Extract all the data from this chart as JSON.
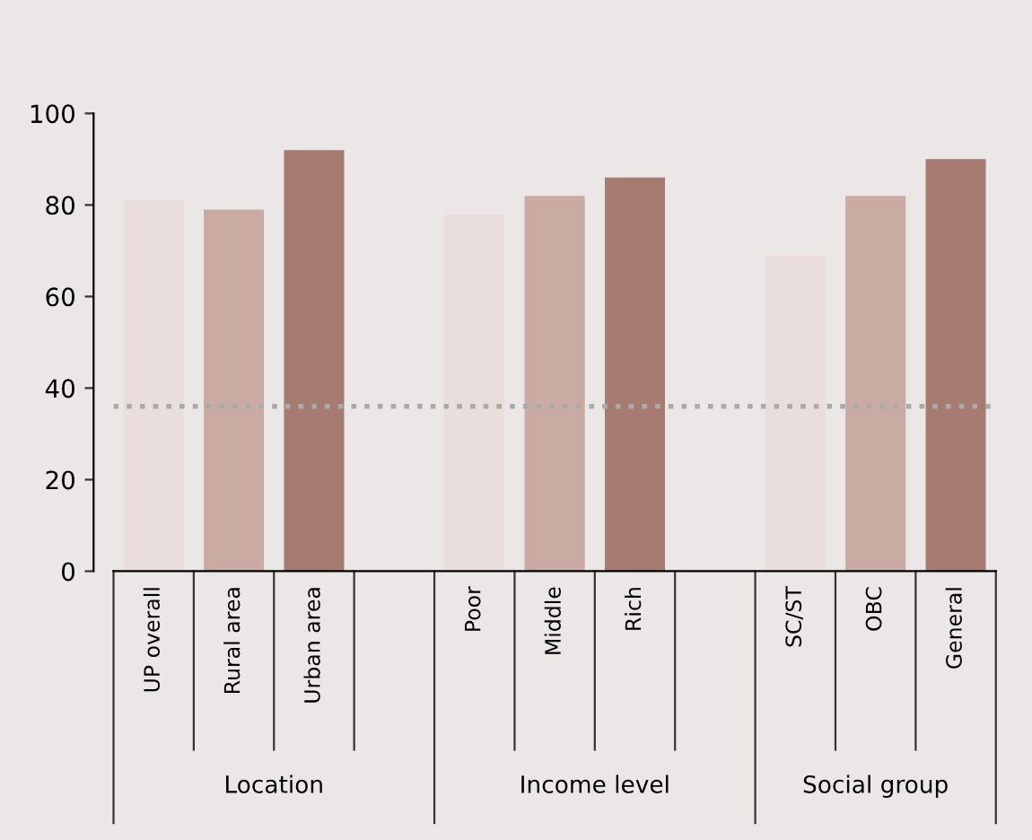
{
  "chart_data": {
    "type": "bar",
    "categories": [
      "UP overall",
      "Rural area",
      "Urban area",
      null,
      "Poor",
      "Middle",
      "Rich",
      null,
      "SC/ST",
      "OBC",
      "General"
    ],
    "values": [
      81,
      79,
      92,
      null,
      78,
      82,
      86,
      null,
      69,
      82,
      90
    ],
    "colors": [
      "#e9dedb",
      "#c9aba3",
      "#a67c72",
      "#ffffff",
      "#e9dedb",
      "#c9aba3",
      "#a67c72",
      "#ffffff",
      "#e9dedb",
      "#c9aba3",
      "#a67c72"
    ],
    "ylim": [
      0,
      100
    ],
    "yticks": [
      0,
      20,
      40,
      60,
      80,
      100
    ],
    "ref_lines": [
      {
        "axis": "y",
        "value": 36,
        "color": "#aaaaaa",
        "line_style": "dotted"
      }
    ],
    "annotations": [
      "Location",
      "Income level",
      "Social group"
    ],
    "grid": false
  }
}
